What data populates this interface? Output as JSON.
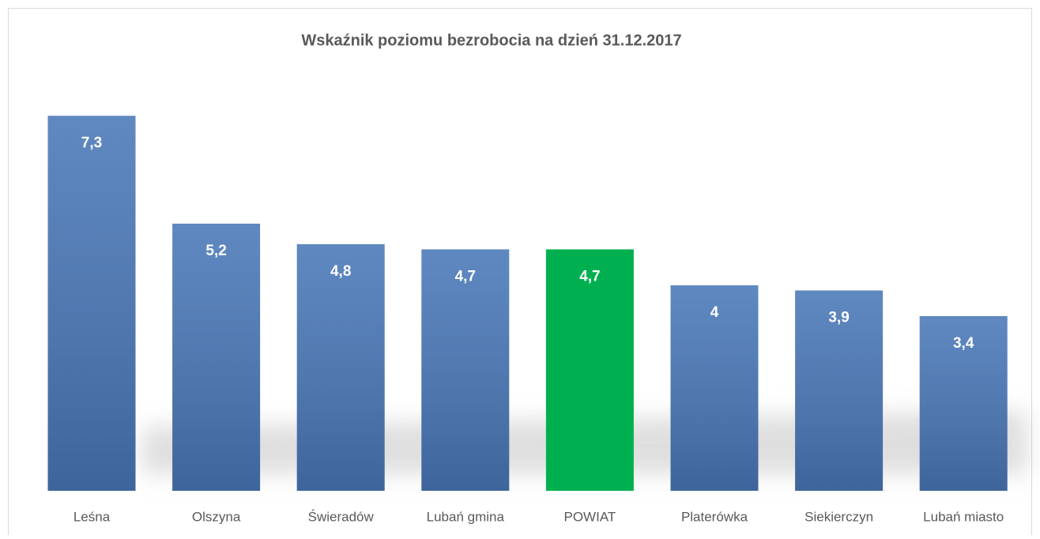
{
  "chart_data": {
    "type": "bar",
    "title": "Wskaźnik poziomu bezrobocia na dzień 31.12.2017",
    "categories": [
      "Leśna",
      "Olszyna",
      "Świeradów",
      "Lubań gmina",
      "POWIAT",
      "Platerówka",
      "Siekierczyn",
      "Lubań miasto"
    ],
    "values": [
      7.3,
      5.2,
      4.8,
      4.7,
      4.7,
      4,
      3.9,
      3.4
    ],
    "value_labels": [
      "7,3",
      "5,2",
      "4,8",
      "4,7",
      "4,7",
      "4",
      "3,9",
      "3,4"
    ],
    "colors": [
      "#4a78b8",
      "#4a78b8",
      "#4a78b8",
      "#4a78b8",
      "#00b050",
      "#4a78b8",
      "#4a78b8",
      "#4a78b8"
    ],
    "ylim": [
      0,
      8
    ]
  }
}
